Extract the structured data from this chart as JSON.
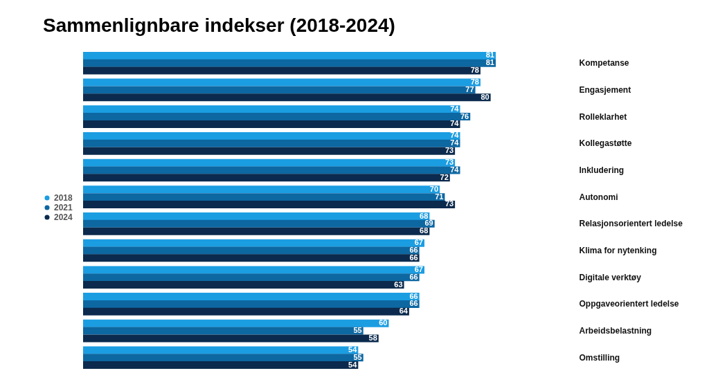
{
  "chart_data": {
    "type": "bar",
    "orientation": "horizontal",
    "title": "Sammenlignbare indekser (2018-2024)",
    "relative": false,
    "data_labels": true,
    "legend": "left",
    "grid": false,
    "categories": [
      "Kompetanse",
      "Engasjement",
      "Rolleklarhet",
      "Kollegastøtte",
      "Inkludering",
      "Autonomi",
      "Relasjonsorientert ledelse",
      "Klima for nytenking",
      "Digitale verktøy",
      "Oppgaveorientert ledelse",
      "Arbeidsbelastning",
      "Omstilling"
    ],
    "series": [
      {
        "name": "2018",
        "color": "#1b9de2",
        "values": [
          81,
          78,
          74,
          74,
          73,
          70,
          68,
          67,
          67,
          66,
          60,
          54
        ]
      },
      {
        "name": "2021",
        "color": "#0d67a1",
        "values": [
          81,
          77,
          76,
          74,
          74,
          71,
          69,
          66,
          66,
          66,
          55,
          55
        ]
      },
      {
        "name": "2024",
        "color": "#0b2a4d",
        "values": [
          78,
          80,
          74,
          73,
          72,
          73,
          68,
          66,
          63,
          64,
          58,
          54
        ]
      }
    ]
  }
}
